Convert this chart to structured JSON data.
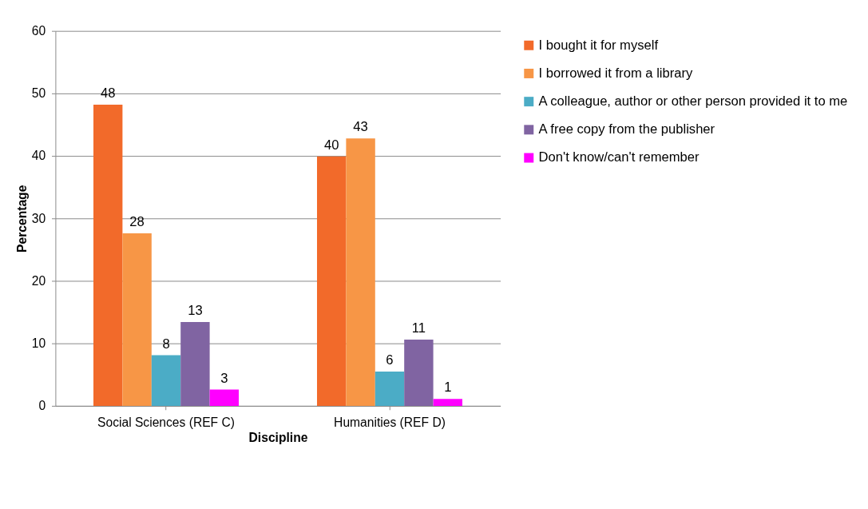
{
  "chart_data": {
    "type": "bar",
    "xlabel": "Discipline",
    "ylabel": "Percentage",
    "categories": [
      "Social Sciences (REF C)",
      "Humanities (REF D)"
    ],
    "series": [
      {
        "name": "I bought it for myself",
        "color": "#f26a2a",
        "values": [
          48.2,
          39.9
        ],
        "value_labels": [
          "48",
          "40"
        ]
      },
      {
        "name": "I borrowed it from a library",
        "color": "#f79646",
        "values": [
          27.6,
          42.8
        ],
        "value_labels": [
          "28",
          "43"
        ]
      },
      {
        "name": "A colleague, author or other person provided it to me",
        "color": "#4bacc6",
        "values": [
          8.1,
          5.5
        ],
        "value_labels": [
          "8",
          "6"
        ]
      },
      {
        "name": "A free copy from the publisher",
        "color": "#8064a2",
        "values": [
          13.4,
          10.6
        ],
        "value_labels": [
          "13",
          "11"
        ]
      },
      {
        "name": "Don't know/can't remember",
        "color": "#ff00ff",
        "values": [
          2.6,
          1.1
        ],
        "value_labels": [
          "3",
          "1"
        ]
      }
    ],
    "ylim": [
      0,
      60
    ],
    "yticks": [
      0,
      10,
      20,
      30,
      40,
      50,
      60
    ],
    "grid": "y",
    "legend": "right"
  }
}
